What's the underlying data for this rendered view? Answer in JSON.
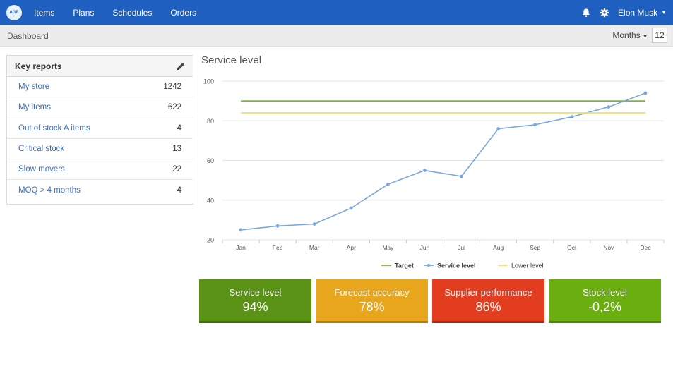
{
  "nav": {
    "logo_text": "AGR",
    "items": [
      "Items",
      "Plans",
      "Schedules",
      "Orders"
    ],
    "user_name": "Elon Musk",
    "icons": [
      "bell-icon",
      "gear-icon"
    ]
  },
  "subbar": {
    "breadcrumb": "Dashboard",
    "period_unit": "Months",
    "period_value": "12"
  },
  "key_reports": {
    "title": "Key reports",
    "rows": [
      {
        "label": "My store",
        "count": "1242"
      },
      {
        "label": "My items",
        "count": "622"
      },
      {
        "label": "Out of stock A items",
        "count": "4"
      },
      {
        "label": "Critical stock",
        "count": "13"
      },
      {
        "label": "Slow movers",
        "count": "22"
      },
      {
        "label": "MOQ > 4 months",
        "count": "4"
      }
    ]
  },
  "chart_title": "Service level",
  "chart_data": {
    "type": "line",
    "title": "Service level",
    "categories": [
      "Jan",
      "Feb",
      "Mar",
      "Apr",
      "May",
      "Jun",
      "Jul",
      "Aug",
      "Sep",
      "Oct",
      "Nov",
      "Dec"
    ],
    "series": [
      {
        "name": "Target",
        "values": [
          90,
          90,
          90,
          90,
          90,
          90,
          90,
          90,
          90,
          90,
          90,
          90
        ],
        "color": "#7cb342"
      },
      {
        "name": "Service level",
        "values": [
          25,
          27,
          28,
          36,
          48,
          55,
          52,
          76,
          78,
          82,
          87,
          94
        ],
        "color": "#7aa7e0"
      },
      {
        "name": "Lower level",
        "values": [
          84,
          84,
          84,
          84,
          84,
          84,
          84,
          84,
          84,
          84,
          84,
          84
        ],
        "color": "#f0e06a"
      }
    ],
    "ylim": [
      20,
      100
    ],
    "yticks": [
      20,
      40,
      60,
      80,
      100
    ],
    "grid": true,
    "legend": "bottom-center"
  },
  "tiles": [
    {
      "label": "Service level",
      "value": "94%",
      "color": "#5a9216"
    },
    {
      "label": "Forecast accuracy",
      "value": "78%",
      "color": "#e8a61c"
    },
    {
      "label": "Supplier performance",
      "value": "86%",
      "color": "#e23d1f"
    },
    {
      "label": "Stock level",
      "value": "-0,2%",
      "color": "#6aae0f"
    }
  ]
}
